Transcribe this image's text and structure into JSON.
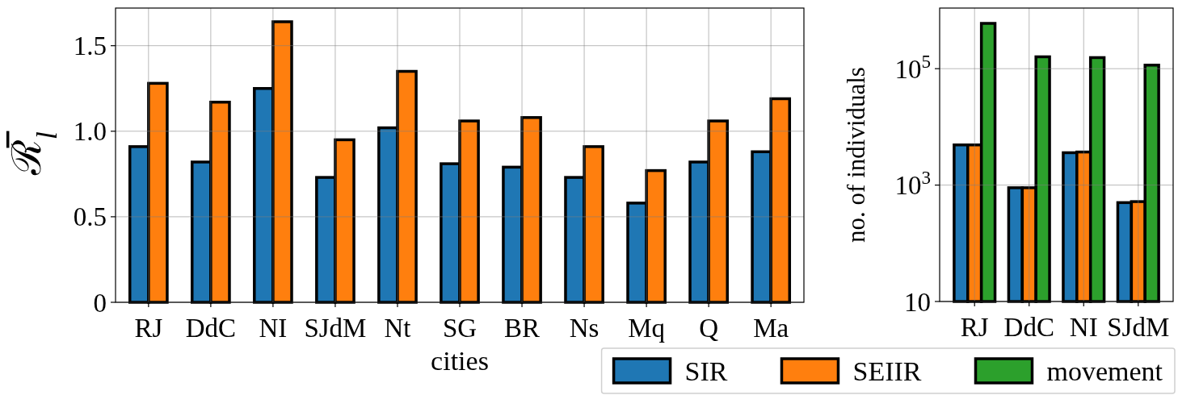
{
  "chart_data": [
    {
      "type": "bar",
      "categories": [
        "RJ",
        "DdC",
        "NI",
        "SJdM",
        "Nt",
        "SG",
        "BR",
        "Ns",
        "Mq",
        "Q",
        "Ma"
      ],
      "series": [
        {
          "name": "SIR",
          "color": "#1f77b4",
          "values": [
            0.91,
            0.82,
            1.25,
            0.73,
            1.02,
            0.81,
            0.79,
            0.73,
            0.58,
            0.82,
            0.88
          ]
        },
        {
          "name": "SEIIR",
          "color": "#ff7f0e",
          "values": [
            1.28,
            1.17,
            1.64,
            0.95,
            1.35,
            1.06,
            1.08,
            0.91,
            0.77,
            1.06,
            1.19
          ]
        }
      ],
      "xlabel": "cities",
      "ylabel": "ℛ̅$_{l}$",
      "ylim": [
        0,
        1.72
      ],
      "yticks": [
        0,
        0.5,
        {
          "value": 1,
          "label": "1.0"
        },
        1.5
      ],
      "grid": true,
      "legend": "bottom right"
    },
    {
      "type": "bar",
      "categories": [
        "RJ",
        "DdC",
        "NI",
        "SJdM"
      ],
      "series": [
        {
          "name": "SIR",
          "color": "#1f77b4",
          "values": [
            4900,
            900,
            3600,
            500
          ]
        },
        {
          "name": "SEIIR",
          "color": "#ff7f0e",
          "values": [
            4900,
            900,
            3700,
            520
          ]
        },
        {
          "name": "movement",
          "color": "#2ca02c",
          "values": [
            600000,
            160000,
            155000,
            115000
          ]
        }
      ],
      "ylabel": "no. of individuals",
      "log": true,
      "ylim": [
        10,
        1100000
      ],
      "yticks": [
        10,
        {
          "value": 1000,
          "label": "10$^{3}$"
        },
        {
          "value": 100000,
          "label": "10$^{5}$"
        }
      ],
      "grid": true,
      "legend": "bottom right"
    }
  ]
}
